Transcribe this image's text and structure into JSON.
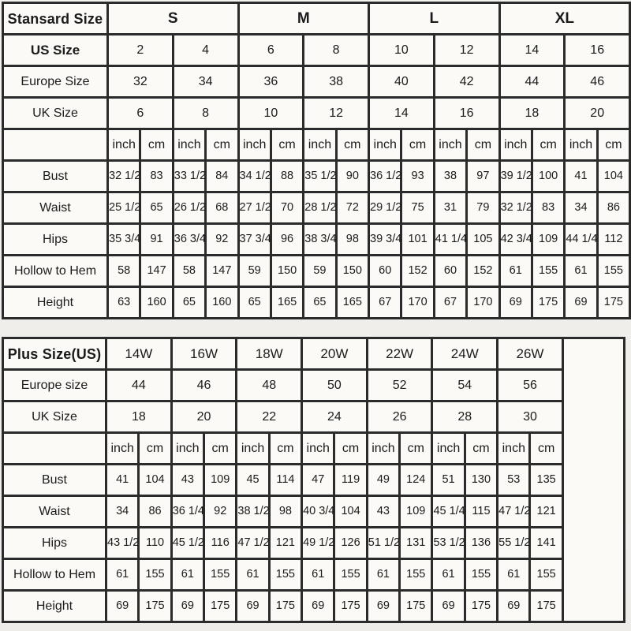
{
  "colors": {
    "page_background": "#f2f1ee",
    "cell_background": "#fbfaf7",
    "border": "#2b2b2b",
    "text": "#1b1b1b"
  },
  "standard_table": {
    "corner_label": "Stansard Size",
    "size_groups": [
      "S",
      "M",
      "L",
      "XL"
    ],
    "info_rows": [
      {
        "label": "US Size",
        "bold": true,
        "values": [
          "2",
          "4",
          "6",
          "8",
          "10",
          "12",
          "14",
          "16"
        ]
      },
      {
        "label": "Europe Size",
        "bold": false,
        "values": [
          "32",
          "34",
          "36",
          "38",
          "40",
          "42",
          "44",
          "46"
        ]
      },
      {
        "label": "UK Size",
        "bold": false,
        "values": [
          "6",
          "8",
          "10",
          "12",
          "14",
          "16",
          "18",
          "20"
        ]
      }
    ],
    "unit_labels": [
      "inch",
      "cm"
    ],
    "unit_pairs": 8,
    "measure_rows": [
      {
        "label": "Bust",
        "values": [
          "32 1/2",
          "83",
          "33 1/2",
          "84",
          "34 1/2",
          "88",
          "35 1/2",
          "90",
          "36 1/2",
          "93",
          "38",
          "97",
          "39 1/2",
          "100",
          "41",
          "104"
        ]
      },
      {
        "label": "Waist",
        "values": [
          "25 1/2",
          "65",
          "26 1/2",
          "68",
          "27 1/2",
          "70",
          "28 1/2",
          "72",
          "29 1/2",
          "75",
          "31",
          "79",
          "32 1/2",
          "83",
          "34",
          "86"
        ]
      },
      {
        "label": "Hips",
        "values": [
          "35 3/4",
          "91",
          "36 3/4",
          "92",
          "37 3/4",
          "96",
          "38 3/4",
          "98",
          "39 3/4",
          "101",
          "41 1/4",
          "105",
          "42 3/4",
          "109",
          "44 1/4",
          "112"
        ]
      },
      {
        "label": "Hollow to Hem",
        "values": [
          "58",
          "147",
          "58",
          "147",
          "59",
          "150",
          "59",
          "150",
          "60",
          "152",
          "60",
          "152",
          "61",
          "155",
          "61",
          "155"
        ]
      },
      {
        "label": "Height",
        "values": [
          "63",
          "160",
          "65",
          "160",
          "65",
          "165",
          "65",
          "165",
          "67",
          "170",
          "67",
          "170",
          "69",
          "175",
          "69",
          "175"
        ]
      }
    ]
  },
  "plus_table": {
    "corner_label": "Plus Size(US)",
    "size_groups": [
      "14W",
      "16W",
      "18W",
      "20W",
      "22W",
      "24W",
      "26W"
    ],
    "info_rows": [
      {
        "label": "Europe size",
        "bold": false,
        "values": [
          "44",
          "46",
          "48",
          "50",
          "52",
          "54",
          "56"
        ]
      },
      {
        "label": "UK Size",
        "bold": false,
        "values": [
          "18",
          "20",
          "22",
          "24",
          "26",
          "28",
          "30"
        ]
      }
    ],
    "unit_labels": [
      "inch",
      "cm"
    ],
    "unit_pairs": 7,
    "measure_rows": [
      {
        "label": "Bust",
        "values": [
          "41",
          "104",
          "43",
          "109",
          "45",
          "114",
          "47",
          "119",
          "49",
          "124",
          "51",
          "130",
          "53",
          "135"
        ]
      },
      {
        "label": "Waist",
        "values": [
          "34",
          "86",
          "36 1/4",
          "92",
          "38 1/2",
          "98",
          "40 3/4",
          "104",
          "43",
          "109",
          "45 1/4",
          "115",
          "47 1/2",
          "121"
        ]
      },
      {
        "label": "Hips",
        "values": [
          "43 1/2",
          "110",
          "45 1/2",
          "116",
          "47 1/2",
          "121",
          "49 1/2",
          "126",
          "51 1/2",
          "131",
          "53 1/2",
          "136",
          "55 1/2",
          "141"
        ]
      },
      {
        "label": "Hollow to Hem",
        "values": [
          "61",
          "155",
          "61",
          "155",
          "61",
          "155",
          "61",
          "155",
          "61",
          "155",
          "61",
          "155",
          "61",
          "155"
        ]
      },
      {
        "label": "Height",
        "values": [
          "69",
          "175",
          "69",
          "175",
          "69",
          "175",
          "69",
          "175",
          "69",
          "175",
          "69",
          "175",
          "69",
          "175"
        ]
      }
    ],
    "trailing_empty_column": true
  }
}
